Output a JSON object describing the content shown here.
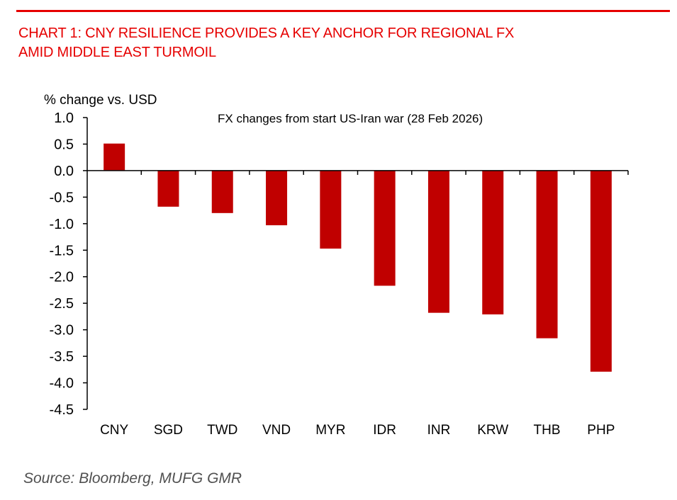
{
  "header": {
    "title_line1": "CHART 1: CNY RESILIENCE PROVIDES A KEY ANCHOR FOR REGIONAL FX",
    "title_line2": "AMID MIDDLE EAST TURMOIL",
    "accent_color": "#e60000"
  },
  "chart_data": {
    "type": "bar",
    "title": "FX changes from start US-Iran war (28 Feb 2026)",
    "xlabel": "",
    "ylabel": "% change vs. USD",
    "categories": [
      "CNY",
      "SGD",
      "TWD",
      "VND",
      "MYR",
      "IDR",
      "INR",
      "KRW",
      "THB",
      "PHP"
    ],
    "values": [
      0.51,
      -0.68,
      -0.8,
      -1.03,
      -1.47,
      -2.17,
      -2.68,
      -2.71,
      -3.16,
      -3.79
    ],
    "ylim": [
      -4.5,
      1.0
    ],
    "yticks": [
      1.0,
      0.5,
      0.0,
      -0.5,
      -1.0,
      -1.5,
      -2.0,
      -2.5,
      -3.0,
      -3.5,
      -4.0,
      -4.5
    ],
    "ytick_labels": [
      "1.0",
      "0.5",
      "0.0",
      "-0.5",
      "-1.0",
      "-1.5",
      "-2.0",
      "-2.5",
      "-3.0",
      "-3.5",
      "-4.0",
      "-4.5"
    ],
    "bar_color": "#c00000",
    "grid": false,
    "legend": "none"
  },
  "footer": {
    "source": "Source: Bloomberg, MUFG GMR"
  }
}
